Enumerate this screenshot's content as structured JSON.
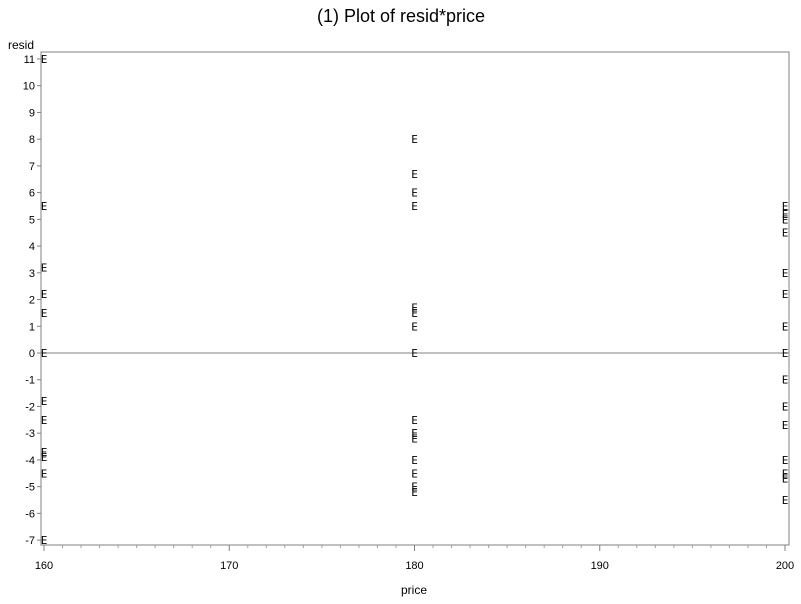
{
  "chart_data": {
    "type": "scatter",
    "title": "(1) Plot of resid*price",
    "xlabel": "price",
    "ylabel": "resid",
    "marker": "E",
    "xlim": [
      160,
      200
    ],
    "ylim": [
      -7.2,
      11.2
    ],
    "x_ticks": [
      160,
      170,
      180,
      190,
      200
    ],
    "y_ticks": [
      -7,
      -6,
      -5,
      -4,
      -3,
      -2,
      -1,
      0,
      1,
      2,
      3,
      4,
      5,
      6,
      7,
      8,
      9,
      10,
      11
    ],
    "reference_line_y": 0,
    "grid": false,
    "points": [
      {
        "x": 160,
        "y": 11
      },
      {
        "x": 160,
        "y": 5.5
      },
      {
        "x": 160,
        "y": 3.2
      },
      {
        "x": 160,
        "y": 2.2
      },
      {
        "x": 160,
        "y": 1.5
      },
      {
        "x": 160,
        "y": 0
      },
      {
        "x": 160,
        "y": -1.8
      },
      {
        "x": 160,
        "y": -2.5
      },
      {
        "x": 160,
        "y": -3.7
      },
      {
        "x": 160,
        "y": -3.9
      },
      {
        "x": 160,
        "y": -4.5
      },
      {
        "x": 160,
        "y": -7
      },
      {
        "x": 180,
        "y": 8
      },
      {
        "x": 180,
        "y": 6.7
      },
      {
        "x": 180,
        "y": 6
      },
      {
        "x": 180,
        "y": 5.5
      },
      {
        "x": 180,
        "y": 1.7
      },
      {
        "x": 180,
        "y": 1.5
      },
      {
        "x": 180,
        "y": 1.0
      },
      {
        "x": 180,
        "y": 0
      },
      {
        "x": 180,
        "y": -2.5
      },
      {
        "x": 180,
        "y": -3.0
      },
      {
        "x": 180,
        "y": -3.2
      },
      {
        "x": 180,
        "y": -4.0
      },
      {
        "x": 180,
        "y": -4.5
      },
      {
        "x": 180,
        "y": -5.0
      },
      {
        "x": 180,
        "y": -5.2
      },
      {
        "x": 200,
        "y": 5.5
      },
      {
        "x": 200,
        "y": 5.2
      },
      {
        "x": 200,
        "y": 5.0
      },
      {
        "x": 200,
        "y": 4.5
      },
      {
        "x": 200,
        "y": 3.0
      },
      {
        "x": 200,
        "y": 2.2
      },
      {
        "x": 200,
        "y": 1.0
      },
      {
        "x": 200,
        "y": 0
      },
      {
        "x": 200,
        "y": -1.0
      },
      {
        "x": 200,
        "y": -2.0
      },
      {
        "x": 200,
        "y": -2.7
      },
      {
        "x": 200,
        "y": -4.0
      },
      {
        "x": 200,
        "y": -4.5
      },
      {
        "x": 200,
        "y": -4.7
      },
      {
        "x": 200,
        "y": -5.5
      }
    ]
  }
}
